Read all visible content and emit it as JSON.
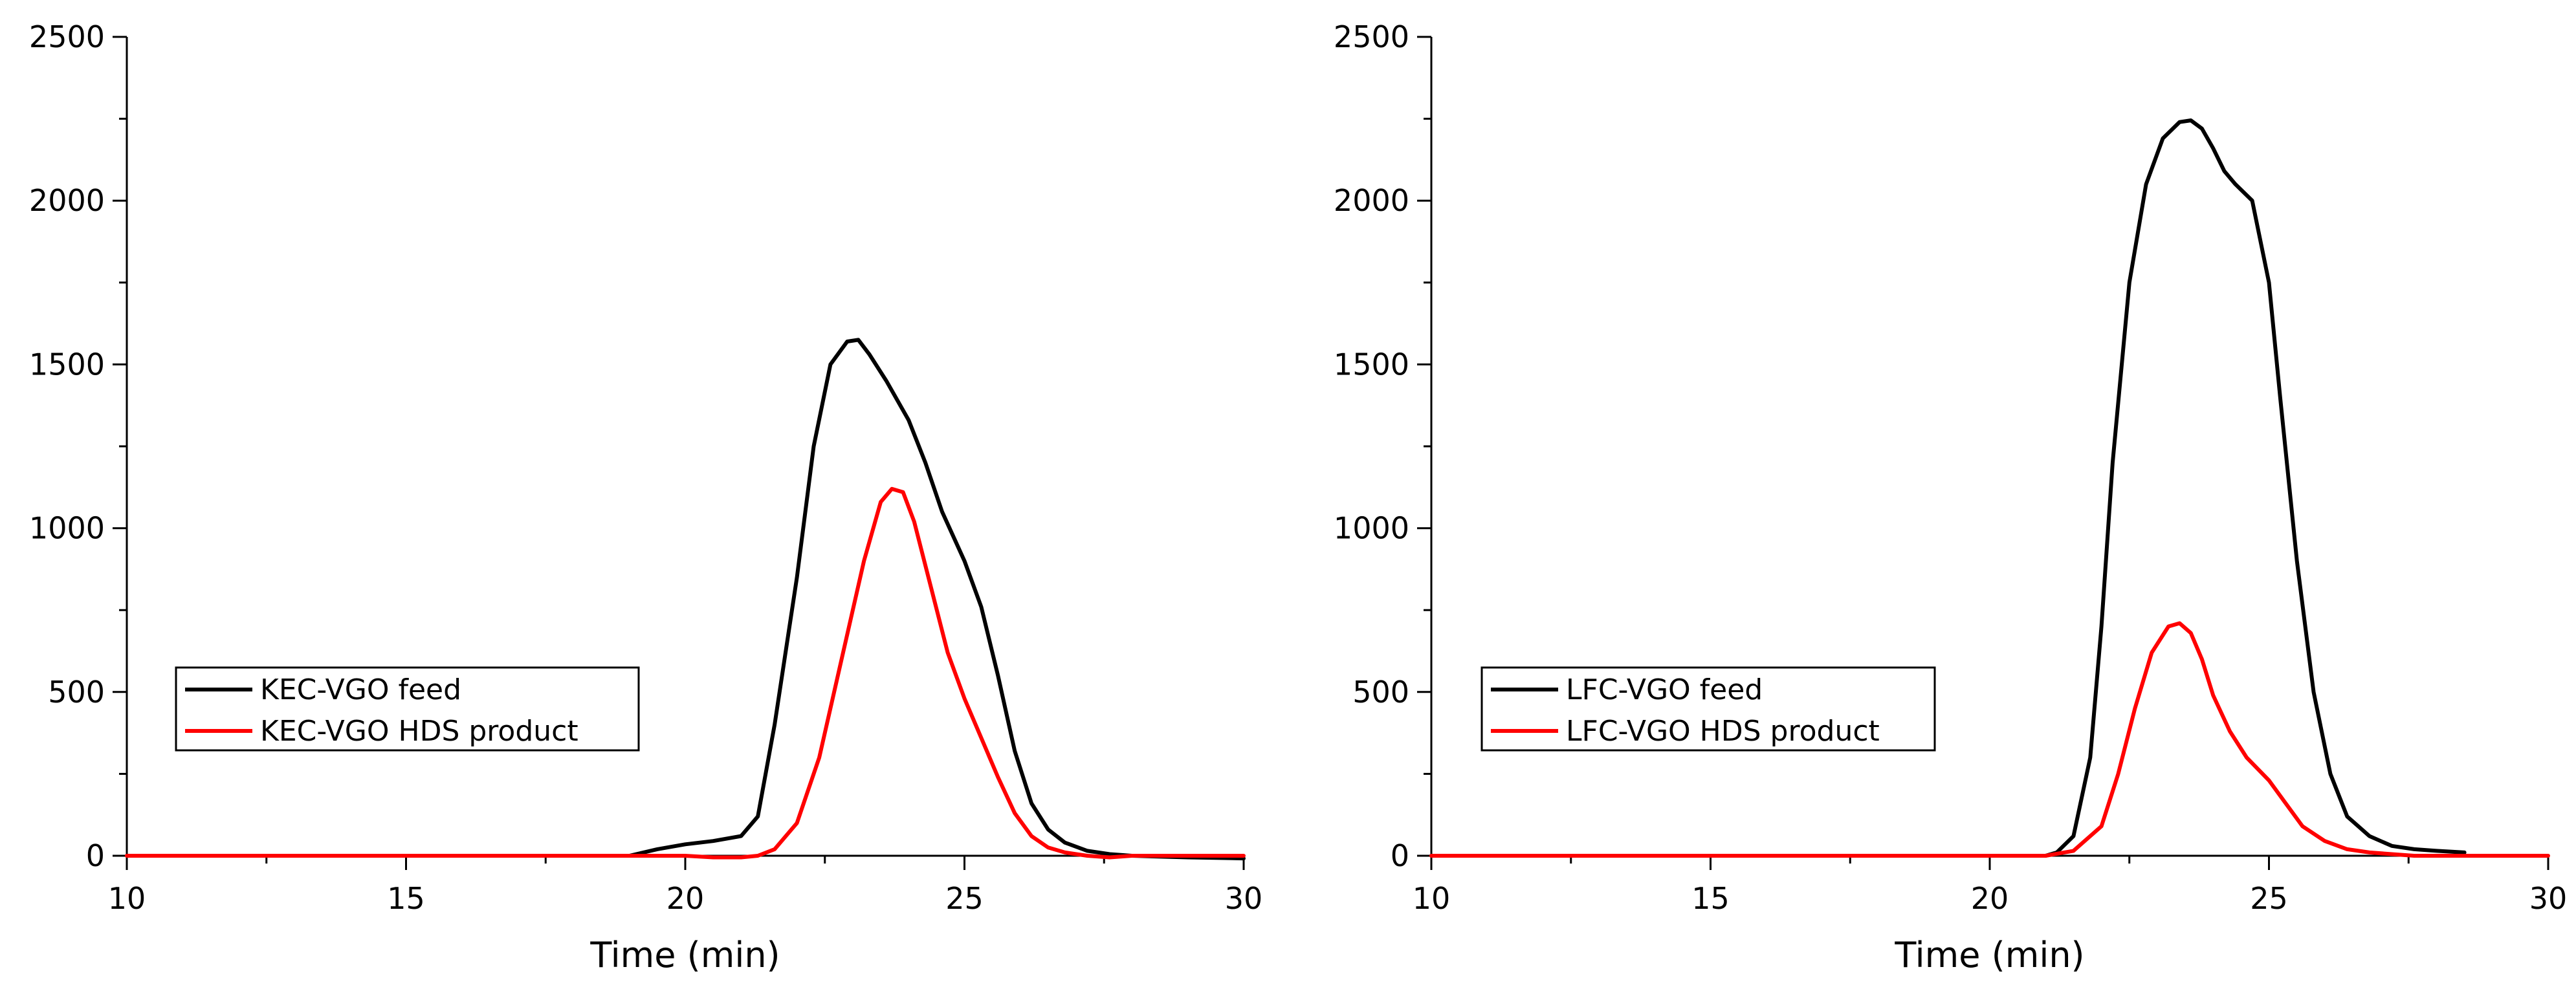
{
  "chart_data": [
    {
      "type": "line",
      "title": "",
      "xlabel": "Time (min)",
      "ylabel": "",
      "xlim": [
        10,
        30
      ],
      "ylim": [
        0,
        2500
      ],
      "xticks": [
        "10",
        "15",
        "20",
        "25",
        "30"
      ],
      "yticks": [
        "0",
        "500",
        "1000",
        "1500",
        "2000",
        "2500"
      ],
      "legend_position": "left-middle",
      "grid": false,
      "series": [
        {
          "name": "KEC-VGO feed",
          "color": "#000000",
          "x": [
            10,
            19,
            19.5,
            20,
            20.5,
            21,
            21.3,
            21.6,
            22,
            22.3,
            22.6,
            22.9,
            23.1,
            23.3,
            23.6,
            24,
            24.3,
            24.6,
            25,
            25.3,
            25.6,
            25.9,
            26.2,
            26.5,
            26.8,
            27.2,
            27.6,
            28,
            29,
            30
          ],
          "values": [
            0,
            0,
            20,
            35,
            45,
            60,
            120,
            400,
            850,
            1250,
            1500,
            1570,
            1575,
            1530,
            1450,
            1330,
            1200,
            1050,
            900,
            760,
            550,
            320,
            160,
            80,
            40,
            15,
            5,
            0,
            -5,
            -8
          ]
        },
        {
          "name": "KEC-VGO HDS product",
          "color": "#ff0000",
          "x": [
            10,
            20,
            20.5,
            21,
            21.3,
            21.6,
            22,
            22.4,
            22.8,
            23.2,
            23.5,
            23.7,
            23.9,
            24.1,
            24.4,
            24.7,
            25,
            25.3,
            25.6,
            25.9,
            26.2,
            26.5,
            26.8,
            27.2,
            27.6,
            28,
            29,
            30
          ],
          "values": [
            0,
            0,
            -5,
            -5,
            0,
            20,
            100,
            300,
            600,
            900,
            1080,
            1120,
            1110,
            1020,
            820,
            620,
            480,
            360,
            240,
            130,
            60,
            25,
            10,
            0,
            -5,
            0,
            0,
            0
          ]
        }
      ]
    },
    {
      "type": "line",
      "title": "",
      "xlabel": "Time (min)",
      "ylabel": "",
      "xlim": [
        10,
        30
      ],
      "ylim": [
        0,
        2500
      ],
      "xticks": [
        "10",
        "15",
        "20",
        "25",
        "30"
      ],
      "yticks": [
        "0",
        "500",
        "1000",
        "1500",
        "2000",
        "2500"
      ],
      "legend_position": "left-middle",
      "grid": false,
      "series": [
        {
          "name": "LFC-VGO feed",
          "color": "#000000",
          "x": [
            10,
            21,
            21.2,
            21.5,
            21.8,
            22,
            22.2,
            22.5,
            22.8,
            23.1,
            23.4,
            23.6,
            23.8,
            24,
            24.2,
            24.4,
            24.7,
            25,
            25.2,
            25.5,
            25.8,
            26.1,
            26.4,
            26.8,
            27.2,
            27.6,
            28,
            28.5
          ],
          "values": [
            0,
            0,
            10,
            60,
            300,
            700,
            1200,
            1750,
            2050,
            2190,
            2240,
            2245,
            2220,
            2160,
            2090,
            2050,
            2000,
            1750,
            1400,
            900,
            500,
            250,
            120,
            60,
            30,
            20,
            15,
            10
          ]
        },
        {
          "name": "LFC-VGO HDS product",
          "color": "#ff0000",
          "x": [
            10,
            21,
            21.5,
            22,
            22.3,
            22.6,
            22.9,
            23.2,
            23.4,
            23.6,
            23.8,
            24,
            24.3,
            24.6,
            25,
            25.3,
            25.6,
            26,
            26.4,
            26.8,
            27.2,
            27.6,
            28,
            28.5,
            30
          ],
          "values": [
            0,
            0,
            15,
            90,
            250,
            450,
            620,
            700,
            710,
            680,
            600,
            490,
            380,
            300,
            230,
            160,
            90,
            45,
            20,
            10,
            5,
            0,
            0,
            0,
            0
          ]
        }
      ]
    }
  ]
}
